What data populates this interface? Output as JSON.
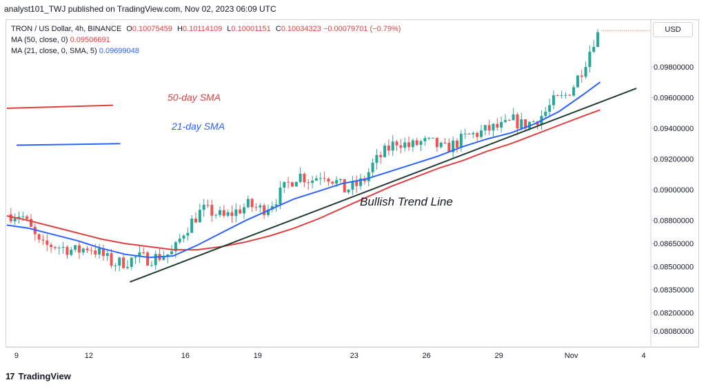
{
  "header": {
    "text": "analyst101_TWJ published on TradingView.com, Nov 02, 2023 06:09 UTC"
  },
  "legend": {
    "symbol": "TRON / US Dollar, 4h, BINANCE",
    "o_key": "O",
    "o_val": "0.10075459",
    "h_key": "H",
    "h_val": "0.10114109",
    "l_key": "L",
    "l_val": "0.10001151",
    "c_key": "C",
    "c_val": "0.10034323",
    "change": "−0.00079701 (−0.79%)",
    "ma50_label": "MA (50, close, 0)",
    "ma50_val": "0.09506691",
    "ma21_label": "MA (21, close, 0, SMA, 5)",
    "ma21_val": "0.09699048"
  },
  "currency": "USD",
  "logo": {
    "mark": "17",
    "text": "TradingView"
  },
  "annotations": {
    "sma50": "50-day SMA",
    "sma21": "21-day SMA",
    "trend": "Bullish Trend Line"
  },
  "colors": {
    "up": "#26a69a",
    "down": "#ef5350",
    "ma50": "#e03e3e",
    "ma21": "#2962ff",
    "trend": "#1e3b2e"
  },
  "chart_data": {
    "type": "candlestick",
    "title": "TRON / US Dollar, 4h, BINANCE",
    "y_ticks": [
      "0.09800000",
      "0.09600000",
      "0.09400000",
      "0.09200000",
      "0.09000000",
      "0.08800000",
      "0.08650000",
      "0.08500000",
      "0.08350000",
      "0.08200000",
      "0.08080000"
    ],
    "x_ticks": [
      {
        "label": "9",
        "day": 9
      },
      {
        "label": "12",
        "day": 12
      },
      {
        "label": "16",
        "day": 16
      },
      {
        "label": "19",
        "day": 19
      },
      {
        "label": "23",
        "day": 23
      },
      {
        "label": "26",
        "day": 26
      },
      {
        "label": "29",
        "day": 29
      },
      {
        "label": "Nov",
        "day": 32
      },
      {
        "label": "4",
        "day": 35
      }
    ],
    "ylim": [
      0.08,
      0.101
    ],
    "xlim_days": [
      8.6,
      35.3
    ],
    "last_price": 0.10034323,
    "price_series": [
      [
        8.6,
        0.0884
      ],
      [
        9.2,
        0.0884
      ],
      [
        9.6,
        0.0874
      ],
      [
        10.0,
        0.0863
      ],
      [
        10.5,
        0.0864
      ],
      [
        11.0,
        0.0862
      ],
      [
        11.5,
        0.086
      ],
      [
        12.0,
        0.0863
      ],
      [
        12.5,
        0.0858
      ],
      [
        13.0,
        0.0852
      ],
      [
        13.5,
        0.0853
      ],
      [
        14.0,
        0.0856
      ],
      [
        14.5,
        0.0855
      ],
      [
        15.0,
        0.0857
      ],
      [
        15.5,
        0.0859
      ],
      [
        15.9,
        0.0872
      ],
      [
        16.3,
        0.088
      ],
      [
        16.7,
        0.0887
      ],
      [
        17.2,
        0.0885
      ],
      [
        17.6,
        0.0882
      ],
      [
        18.1,
        0.0886
      ],
      [
        18.6,
        0.089
      ],
      [
        19.2,
        0.0887
      ],
      [
        19.7,
        0.0893
      ],
      [
        20.2,
        0.0903
      ],
      [
        20.7,
        0.091
      ],
      [
        21.2,
        0.0906
      ],
      [
        21.7,
        0.0911
      ],
      [
        22.2,
        0.0906
      ],
      [
        22.6,
        0.09
      ],
      [
        23.0,
        0.0902
      ],
      [
        23.4,
        0.0906
      ],
      [
        23.8,
        0.0917
      ],
      [
        24.3,
        0.0925
      ],
      [
        24.8,
        0.0932
      ],
      [
        25.3,
        0.0928
      ],
      [
        25.8,
        0.0931
      ],
      [
        26.3,
        0.093
      ],
      [
        26.7,
        0.0926
      ],
      [
        27.2,
        0.093
      ],
      [
        27.7,
        0.0935
      ],
      [
        28.2,
        0.0937
      ],
      [
        28.7,
        0.094
      ],
      [
        29.2,
        0.0941
      ],
      [
        29.6,
        0.0945
      ],
      [
        30.0,
        0.0942
      ],
      [
        30.5,
        0.0945
      ],
      [
        30.9,
        0.095
      ],
      [
        31.3,
        0.0958
      ],
      [
        31.7,
        0.096
      ],
      [
        32.1,
        0.0968
      ],
      [
        32.5,
        0.098
      ],
      [
        32.8,
        0.0992
      ],
      [
        33.0,
        0.1
      ],
      [
        33.25,
        0.1003
      ]
    ],
    "series": [
      {
        "name": "MA (50, close, 0)",
        "points": [
          [
            8.6,
            0.0883
          ],
          [
            9.5,
            0.088
          ],
          [
            10.5,
            0.0876
          ],
          [
            11.5,
            0.0872
          ],
          [
            12.5,
            0.0868
          ],
          [
            13.5,
            0.0865
          ],
          [
            14.5,
            0.0863
          ],
          [
            15.5,
            0.0861
          ],
          [
            16.5,
            0.0861
          ],
          [
            17.5,
            0.0863
          ],
          [
            18.5,
            0.0866
          ],
          [
            19.5,
            0.087
          ],
          [
            20.5,
            0.0875
          ],
          [
            21.5,
            0.0881
          ],
          [
            22.5,
            0.0888
          ],
          [
            23.5,
            0.0895
          ],
          [
            24.5,
            0.0902
          ],
          [
            25.5,
            0.0908
          ],
          [
            26.5,
            0.0914
          ],
          [
            27.5,
            0.0919
          ],
          [
            28.5,
            0.0925
          ],
          [
            29.5,
            0.093
          ],
          [
            30.5,
            0.0936
          ],
          [
            31.5,
            0.0942
          ],
          [
            32.5,
            0.0948
          ],
          [
            33.2,
            0.0952
          ]
        ]
      },
      {
        "name": "MA (21, close, 0, SMA, 5)",
        "points": [
          [
            8.6,
            0.0877
          ],
          [
            9.5,
            0.0875
          ],
          [
            10.5,
            0.0871
          ],
          [
            11.5,
            0.0867
          ],
          [
            12.5,
            0.0862
          ],
          [
            13.5,
            0.0858
          ],
          [
            14.5,
            0.0856
          ],
          [
            15.5,
            0.0857
          ],
          [
            16.5,
            0.0864
          ],
          [
            17.5,
            0.0872
          ],
          [
            18.5,
            0.088
          ],
          [
            19.5,
            0.0887
          ],
          [
            20.5,
            0.0894
          ],
          [
            21.5,
            0.0899
          ],
          [
            22.5,
            0.0904
          ],
          [
            23.5,
            0.0907
          ],
          [
            24.5,
            0.0912
          ],
          [
            25.5,
            0.0917
          ],
          [
            26.5,
            0.0922
          ],
          [
            27.5,
            0.0928
          ],
          [
            28.5,
            0.0933
          ],
          [
            29.5,
            0.0937
          ],
          [
            30.5,
            0.0943
          ],
          [
            31.5,
            0.0951
          ],
          [
            32.5,
            0.0962
          ],
          [
            33.2,
            0.097
          ]
        ]
      }
    ],
    "trend_line": [
      [
        13.7,
        0.084
      ],
      [
        34.7,
        0.0966
      ]
    ],
    "legend_samples": {
      "sma50": [
        [
          8.6,
          0.0953
        ],
        [
          13.0,
          0.0955
        ]
      ],
      "sma21": [
        [
          9.0,
          0.0929
        ],
        [
          13.3,
          0.093
        ]
      ]
    }
  }
}
